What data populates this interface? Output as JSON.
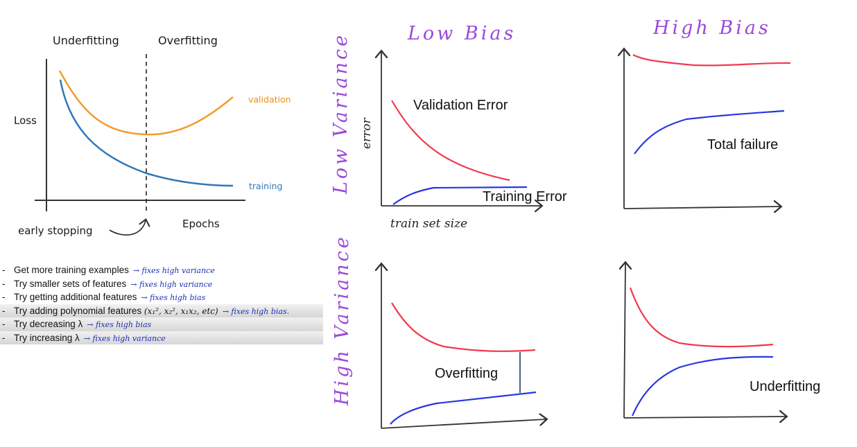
{
  "colors": {
    "validation_orange": "#f39a2c",
    "training_blue": "#2f77b8",
    "red": "#f0394f",
    "blue": "#2835e0",
    "purple": "#9b48d8"
  },
  "left_chart": {
    "top_labels": {
      "underfitting": "Underfitting",
      "overfitting": "Overfitting"
    },
    "y_label": "Loss",
    "x_label": "Epochs",
    "validation_label": "validation",
    "training_label": "training",
    "early_stopping_label": "early stopping"
  },
  "tips": [
    {
      "text": "Get more training examples",
      "note": "fixes high variance",
      "math": ""
    },
    {
      "text": "Try smaller sets of features",
      "note": "fixes high variance",
      "math": ""
    },
    {
      "text": "Try getting additional features",
      "note": "fixes high bias",
      "math": ""
    },
    {
      "text": "Try adding polynomial features",
      "note": "fixes high bias.",
      "math": "(x₁², x₂², x₁x₂, etc)"
    },
    {
      "text": "Try decreasing λ",
      "note": "fixes high bias",
      "math": ""
    },
    {
      "text": "Try increasing λ",
      "note": "fixes high variance",
      "math": ""
    }
  ],
  "grid": {
    "col_low_bias": "Low Bias",
    "col_high_bias": "High Bias",
    "row_low_variance": "Low Variance",
    "row_high_variance": "High Variance",
    "y_axis_label": "error",
    "x_axis_label": "train set size",
    "validation_error": "Validation Error",
    "training_error": "Training Error",
    "total_failure": "Total failure",
    "overfitting": "Overfitting",
    "underfitting": "Underfitting"
  }
}
